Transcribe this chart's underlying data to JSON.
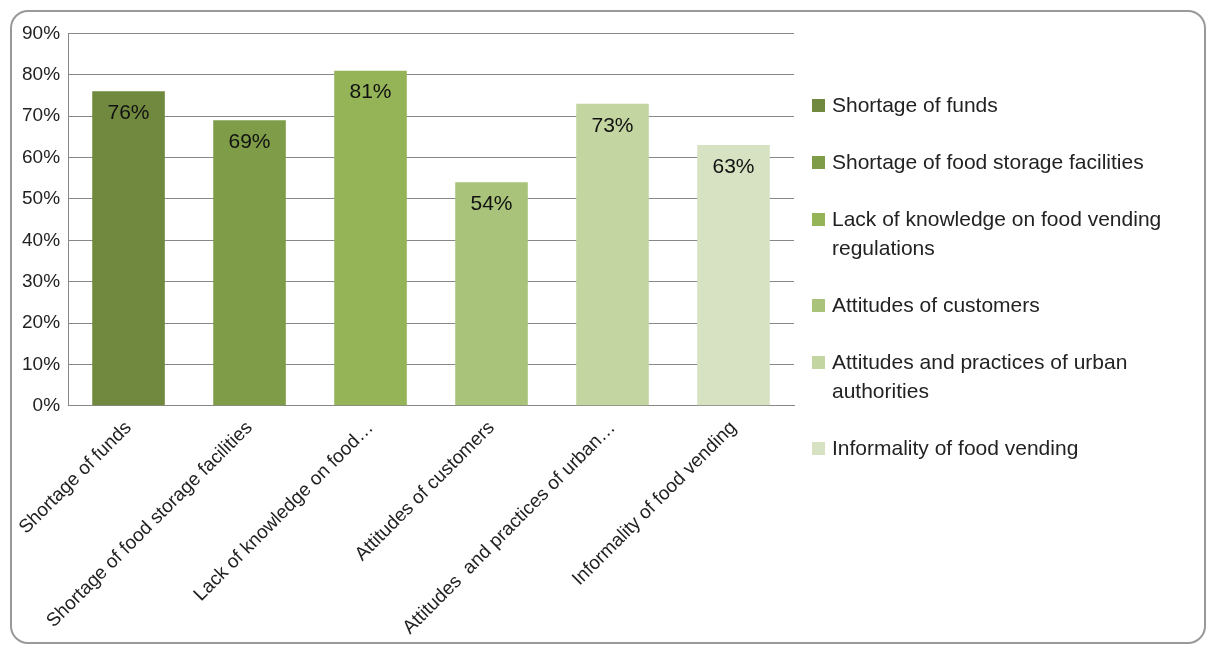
{
  "chart_data": {
    "type": "bar",
    "categories": [
      "Shortage of funds",
      "Shortage of food storage facilities",
      "Lack of knowledge on food…",
      "Attitudes of customers",
      "Attitudes  and practices of urban…",
      "Informality of food vending"
    ],
    "series": [
      {
        "name": "Shortage of funds",
        "color": "#71893f",
        "values": [
          76,
          null,
          null,
          null,
          null,
          null
        ],
        "value_labels": [
          "76%",
          null,
          null,
          null,
          null,
          null
        ]
      },
      {
        "name": "Shortage of food storage facilities",
        "color": "#7f9d48",
        "values": [
          null,
          69,
          null,
          null,
          null,
          null
        ],
        "value_labels": [
          null,
          "69%",
          null,
          null,
          null,
          null
        ]
      },
      {
        "name": "Lack of knowledge on food vending regulations",
        "color": "#94b457",
        "values": [
          null,
          null,
          81,
          null,
          null,
          null
        ],
        "value_labels": [
          null,
          null,
          "81%",
          null,
          null,
          null
        ]
      },
      {
        "name": "Attitudes of customers",
        "color": "#a9c47a",
        "values": [
          null,
          null,
          null,
          54,
          null,
          null
        ],
        "value_labels": [
          null,
          null,
          null,
          "54%",
          null,
          null
        ]
      },
      {
        "name": "Attitudes  and practices of urban authorities",
        "color": "#c3d5a0",
        "values": [
          null,
          null,
          null,
          null,
          73,
          null
        ],
        "value_labels": [
          null,
          null,
          null,
          null,
          "73%",
          null
        ]
      },
      {
        "name": "Informality of food vending",
        "color": "#d7e2c2",
        "values": [
          null,
          null,
          null,
          null,
          null,
          63
        ],
        "value_labels": [
          null,
          null,
          null,
          null,
          null,
          "63%"
        ]
      }
    ],
    "ylim": [
      0,
      90
    ],
    "yticks": [
      {
        "value": 0,
        "label": "0%"
      },
      {
        "value": 10,
        "label": "10%"
      },
      {
        "value": 20,
        "label": "20%"
      },
      {
        "value": 30,
        "label": "30%"
      },
      {
        "value": 40,
        "label": "40%"
      },
      {
        "value": 50,
        "label": "50%"
      },
      {
        "value": 60,
        "label": "60%"
      },
      {
        "value": 70,
        "label": "70%"
      },
      {
        "value": 80,
        "label": "80%"
      },
      {
        "value": 90,
        "label": "90%"
      }
    ],
    "grid": "y",
    "legend": "right"
  }
}
